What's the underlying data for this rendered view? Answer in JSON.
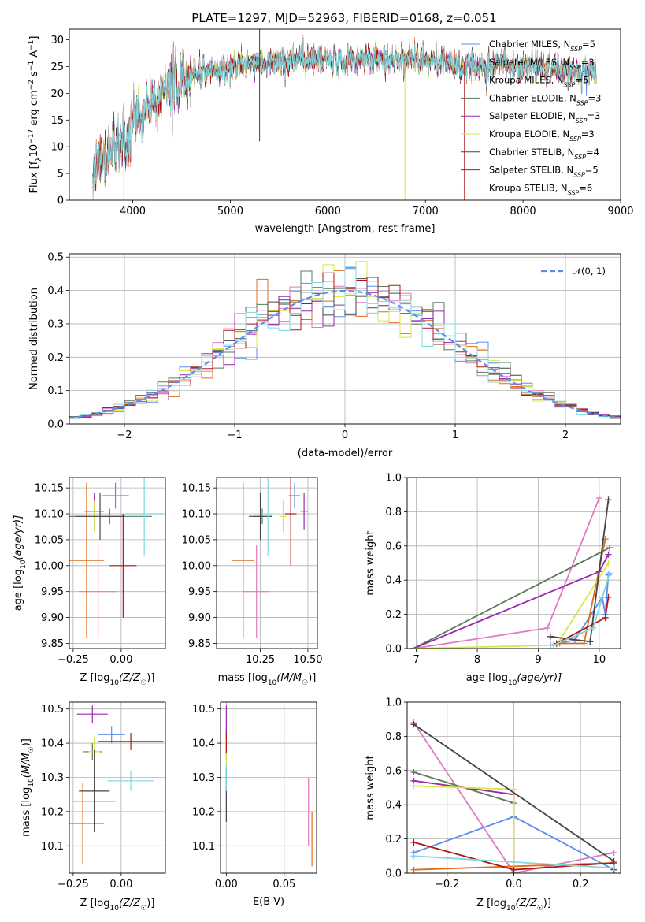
{
  "title": "PLATE=1297, MJD=52963, FIBERID=0168, z=0.051",
  "colors": {
    "Chabrier MILES": "#5b8def",
    "Salpeter MILES": "#e377c2",
    "Kroupa MILES": "#e06c1a",
    "Chabrier ELODIE": "#5a7a5a",
    "Salpeter ELODIE": "#9a27b0",
    "Kroupa ELODIE": "#d4e84a",
    "Chabrier STELIB": "#444444",
    "Salpeter STELIB": "#b01515",
    "Kroupa STELIB": "#7fd8df"
  },
  "chart_data": [
    {
      "type": "line",
      "panel": "spectrum",
      "title": "PLATE=1297, MJD=52963, FIBERID=0168, z=0.051",
      "xlabel": "wavelength [Angstrom, rest frame]",
      "ylabel": "Flux [f_λ 10^-17 erg cm^-2 s^-1 A^-1]",
      "xlim": [
        3350,
        9000
      ],
      "ylim": [
        0,
        32
      ],
      "xticks": [
        4000,
        5000,
        6000,
        7000,
        8000,
        9000
      ],
      "yticks": [
        0,
        5,
        10,
        15,
        20,
        25,
        30
      ],
      "legend_placement": "upper-right",
      "x_knots": [
        3600,
        3650,
        3700,
        3800,
        3900,
        3960,
        4000,
        4100,
        4200,
        4300,
        4400,
        4500,
        4600,
        4700,
        4800,
        4900,
        5000,
        5200,
        5400,
        5600,
        5800,
        6000,
        6200,
        6400,
        6600,
        6800,
        7000,
        7200,
        7400,
        7600,
        7800,
        8000,
        8200,
        8400,
        8600,
        8750
      ],
      "flux_knots": [
        4.5,
        7.5,
        8.0,
        9.5,
        10.5,
        11.5,
        15.5,
        16.5,
        17.5,
        19.5,
        21.5,
        22.5,
        23.0,
        23.5,
        24.0,
        24.5,
        25.0,
        25.5,
        26.0,
        26.2,
        26.5,
        26.0,
        26.0,
        26.5,
        26.0,
        26.5,
        26.5,
        26.0,
        24.5,
        25.0,
        25.5,
        25.0,
        24.5,
        24.5,
        24.0,
        24.0
      ],
      "series": [
        {
          "name": "Chabrier MILES, N_SSP=5",
          "label_main": "Chabrier MILES, N",
          "label_sub": "SSP",
          "label_tail": "=5"
        },
        {
          "name": "Salpeter MILES, N_SSP=3",
          "label_main": "Salpeter MILES, N",
          "label_sub": "SSP",
          "label_tail": "=3"
        },
        {
          "name": "Kroupa MILES, N_SSP=5",
          "label_main": "Kroupa MILES, N",
          "label_sub": "SSP",
          "label_tail": "=5"
        },
        {
          "name": "Chabrier ELODIE, N_SSP=3",
          "label_main": "Chabrier ELODIE, N",
          "label_sub": "SSP",
          "label_tail": "=3"
        },
        {
          "name": "Salpeter ELODIE, N_SSP=3",
          "label_main": "Salpeter ELODIE, N",
          "label_sub": "SSP",
          "label_tail": "=3"
        },
        {
          "name": "Kroupa ELODIE, N_SSP=3",
          "label_main": "Kroupa ELODIE, N",
          "label_sub": "SSP",
          "label_tail": "=3"
        },
        {
          "name": "Chabrier STELIB, N_SSP=4",
          "label_main": "Chabrier STELIB, N",
          "label_sub": "SSP",
          "label_tail": "=4"
        },
        {
          "name": "Salpeter STELIB, N_SSP=5",
          "label_main": "Salpeter STELIB, N",
          "label_sub": "SSP",
          "label_tail": "=5"
        },
        {
          "name": "Kroupa STELIB, N_SSP=6",
          "label_main": "Kroupa STELIB, N",
          "label_sub": "SSP",
          "label_tail": "=6"
        }
      ],
      "spikes": [
        {
          "x": 5300,
          "y_top": 32,
          "y_bottom": 11,
          "series": 6
        },
        {
          "x": 3910,
          "y_top": 8,
          "y_bottom": 0,
          "series": 2
        },
        {
          "x": 6790,
          "y_top": 26,
          "y_bottom": 0,
          "series": 5
        },
        {
          "x": 7400,
          "y_top": 26,
          "y_bottom": 0,
          "series": 7
        },
        {
          "x": 8650,
          "y_top": 24,
          "y_bottom": 19.5,
          "series": 0
        }
      ]
    },
    {
      "type": "line",
      "panel": "residual-histogram",
      "xlabel": "(data-model)/error",
      "ylabel": "Normed distribution",
      "xlim": [
        -2.5,
        2.5
      ],
      "ylim": [
        0,
        0.51
      ],
      "xticks": [
        -2,
        -1,
        0,
        1,
        2
      ],
      "yticks": [
        0.0,
        0.1,
        0.2,
        0.3,
        0.4,
        0.5
      ],
      "grid": true,
      "legend_placement": "upper-right",
      "reference_curve": {
        "name": "N(0, 1)",
        "label": "𝒩(0, 1)",
        "style": "dashed",
        "color": "#5b8def"
      },
      "bin_width": 0.1,
      "bins_from": -2.5
    },
    {
      "type": "scatter",
      "panel": "age-vs-Z",
      "xlabel": "Z [log10(Z/Z☉)]",
      "ylabel": "age [log10(age/yr)]",
      "xlim": [
        -0.27,
        0.23
      ],
      "ylim": [
        9.84,
        10.17
      ],
      "xticks": [
        -0.25,
        0.0
      ],
      "yticks": [
        9.85,
        9.9,
        9.95,
        10.0,
        10.05,
        10.1,
        10.15
      ],
      "grid": true,
      "points": [
        {
          "series": 0,
          "x": -0.03,
          "y": 10.135,
          "xerr": 0.07,
          "yerr": 0.025
        },
        {
          "series": 1,
          "x": -0.12,
          "y": 9.95,
          "xerr": 0.1,
          "yerr": 0.09
        },
        {
          "series": 2,
          "x": -0.18,
          "y": 10.01,
          "xerr": 0.09,
          "yerr": 0.15
        },
        {
          "series": 3,
          "x": -0.06,
          "y": 10.095,
          "xerr": 0.22,
          "yerr": 0.015
        },
        {
          "series": 4,
          "x": -0.14,
          "y": 10.105,
          "xerr": 0.05,
          "yerr": 0.035
        },
        {
          "series": 5,
          "x": -0.14,
          "y": 10.095,
          "xerr": 0.03,
          "yerr": 0.03
        },
        {
          "series": 6,
          "x": -0.11,
          "y": 10.095,
          "xerr": 0.13,
          "yerr": 0.045
        },
        {
          "series": 7,
          "x": 0.01,
          "y": 10.0,
          "xerr": 0.07,
          "yerr": 0.1
        },
        {
          "series": 8,
          "x": 0.12,
          "y": 10.1,
          "xerr": 0.1,
          "yerr": 0.08
        }
      ]
    },
    {
      "type": "scatter",
      "panel": "age-vs-mass",
      "xlabel": "mass [log10(M/M☉)]",
      "ylabel": "",
      "xlim": [
        10.02,
        10.55
      ],
      "ylim": [
        9.84,
        10.17
      ],
      "xticks": [
        10.25,
        10.5
      ],
      "yticks": [
        9.85,
        9.9,
        9.95,
        10.0,
        10.05,
        10.1,
        10.15
      ],
      "grid": true,
      "points": [
        {
          "series": 0,
          "x": 10.43,
          "y": 10.135,
          "xerr": 0.03,
          "yerr": 0.025
        },
        {
          "series": 1,
          "x": 10.23,
          "y": 9.95,
          "xerr": 0.07,
          "yerr": 0.09
        },
        {
          "series": 2,
          "x": 10.16,
          "y": 10.01,
          "xerr": 0.06,
          "yerr": 0.15
        },
        {
          "series": 3,
          "x": 10.26,
          "y": 10.095,
          "xerr": 0.05,
          "yerr": 0.015
        },
        {
          "series": 4,
          "x": 10.48,
          "y": 10.105,
          "xerr": 0.02,
          "yerr": 0.035
        },
        {
          "series": 5,
          "x": 10.37,
          "y": 10.095,
          "xerr": 0.02,
          "yerr": 0.03
        },
        {
          "series": 6,
          "x": 10.25,
          "y": 10.095,
          "xerr": 0.06,
          "yerr": 0.045
        },
        {
          "series": 7,
          "x": 10.41,
          "y": 10.1,
          "xerr": 0.03,
          "yerr": 0.1
        },
        {
          "series": 8,
          "x": 10.29,
          "y": 10.1,
          "xerr": 0.03,
          "yerr": 0.08
        }
      ]
    },
    {
      "type": "line",
      "panel": "mass-weight-vs-age",
      "xlabel": "age [log10(age/yr)]",
      "ylabel": "mass weight",
      "xlim": [
        6.85,
        10.35
      ],
      "ylim": [
        0,
        1.0
      ],
      "xticks": [
        7,
        8,
        9,
        10
      ],
      "yticks": [
        0.0,
        0.2,
        0.4,
        0.6,
        0.8,
        1.0
      ],
      "grid": true,
      "series": [
        {
          "series": 0,
          "x": [
            9.2,
            9.6,
            10.05,
            10.1,
            10.15
          ],
          "y": [
            0.02,
            0.05,
            0.3,
            0.2,
            0.43
          ]
        },
        {
          "series": 1,
          "x": [
            6.95,
            9.15,
            10.0
          ],
          "y": [
            0.0,
            0.12,
            0.88
          ]
        },
        {
          "series": 2,
          "x": [
            9.35,
            9.75,
            10.1
          ],
          "y": [
            0.03,
            0.03,
            0.64
          ]
        },
        {
          "series": 3,
          "x": [
            6.95,
            10.17
          ],
          "y": [
            0.0,
            0.59
          ]
        },
        {
          "series": 4,
          "x": [
            6.95,
            10.0,
            10.15
          ],
          "y": [
            0.0,
            0.45,
            0.55
          ]
        },
        {
          "series": 5,
          "x": [
            6.95,
            9.3,
            10.15
          ],
          "y": [
            0.0,
            0.02,
            0.5
          ]
        },
        {
          "series": 6,
          "x": [
            9.2,
            9.85,
            10.15
          ],
          "y": [
            0.07,
            0.04,
            0.87
          ]
        },
        {
          "series": 7,
          "x": [
            9.3,
            10.1,
            10.15
          ],
          "y": [
            0.03,
            0.18,
            0.3
          ]
        },
        {
          "series": 8,
          "x": [
            9.25,
            9.9,
            10.17
          ],
          "y": [
            0.02,
            0.12,
            0.44
          ]
        }
      ]
    },
    {
      "type": "scatter",
      "panel": "mass-vs-Z",
      "xlabel": "Z [log10(Z/Z☉)]",
      "ylabel": "mass [log10(M/M☉)]",
      "xlim": [
        -0.27,
        0.23
      ],
      "ylim": [
        10.02,
        10.52
      ],
      "xticks": [
        -0.25,
        0.0
      ],
      "yticks": [
        10.1,
        10.2,
        10.3,
        10.4,
        10.5
      ],
      "grid": true,
      "points": [
        {
          "series": 0,
          "x": -0.05,
          "y": 10.425,
          "xerr": 0.07,
          "yerr": 0.025
        },
        {
          "series": 1,
          "x": -0.14,
          "y": 10.23,
          "xerr": 0.11,
          "yerr": 0.07
        },
        {
          "series": 2,
          "x": -0.2,
          "y": 10.165,
          "xerr": 0.11,
          "yerr": 0.12
        },
        {
          "series": 3,
          "x": -0.15,
          "y": 10.375,
          "xerr": 0.05,
          "yerr": 0.025
        },
        {
          "series": 4,
          "x": -0.15,
          "y": 10.485,
          "xerr": 0.08,
          "yerr": 0.025
        },
        {
          "series": 5,
          "x": -0.14,
          "y": 10.375,
          "xerr": 0.03,
          "yerr": 0.045
        },
        {
          "series": 6,
          "x": -0.14,
          "y": 10.26,
          "xerr": 0.08,
          "yerr": 0.12
        },
        {
          "series": 7,
          "x": 0.05,
          "y": 10.405,
          "xerr": 0.17,
          "yerr": 0.025
        },
        {
          "series": 8,
          "x": 0.05,
          "y": 10.29,
          "xerr": 0.12,
          "yerr": 0.03
        }
      ]
    },
    {
      "type": "scatter",
      "panel": "mass-vs-EBV",
      "xlabel": "E(B-V)",
      "ylabel": "",
      "xlim": [
        -0.005,
        0.078
      ],
      "ylim": [
        10.02,
        10.52
      ],
      "xticks": [
        0.0,
        0.05
      ],
      "yticks": [
        10.1,
        10.2,
        10.3,
        10.4,
        10.5
      ],
      "grid": true,
      "points": [
        {
          "series": 0,
          "x": 0.0,
          "y": 10.43,
          "xerr": 0,
          "yerr": 0.02
        },
        {
          "series": 1,
          "x": 0.071,
          "y": 10.2,
          "xerr": 0,
          "yerr": 0.1
        },
        {
          "series": 2,
          "x": 0.074,
          "y": 10.12,
          "xerr": 0,
          "yerr": 0.08
        },
        {
          "series": 3,
          "x": 0.0,
          "y": 10.37,
          "xerr": 0,
          "yerr": 0.02
        },
        {
          "series": 4,
          "x": 0.0,
          "y": 10.47,
          "xerr": 0,
          "yerr": 0.04
        },
        {
          "series": 5,
          "x": 0.0,
          "y": 10.37,
          "xerr": 0,
          "yerr": 0.03
        },
        {
          "series": 6,
          "x": 0.0,
          "y": 10.25,
          "xerr": 0,
          "yerr": 0.08
        },
        {
          "series": 7,
          "x": 0.0,
          "y": 10.4,
          "xerr": 0,
          "yerr": 0.03
        },
        {
          "series": 8,
          "x": 0.0,
          "y": 10.3,
          "xerr": 0,
          "yerr": 0.04
        }
      ]
    },
    {
      "type": "line",
      "panel": "mass-weight-vs-Z",
      "xlabel": "Z [log10(Z/Z☉)]",
      "ylabel": "mass weight",
      "xlim": [
        -0.32,
        0.32
      ],
      "ylim": [
        0,
        1.0
      ],
      "xticks": [
        -0.2,
        0.0,
        0.2
      ],
      "yticks": [
        0.0,
        0.2,
        0.4,
        0.6,
        0.8,
        1.0
      ],
      "grid": true,
      "series": [
        {
          "series": 0,
          "x": [
            -0.3,
            0.0,
            0.3
          ],
          "y": [
            0.12,
            0.33,
            0.02
          ]
        },
        {
          "series": 1,
          "x": [
            -0.3,
            0.0,
            0.3
          ],
          "y": [
            0.88,
            0.0,
            0.12
          ]
        },
        {
          "series": 2,
          "x": [
            -0.3,
            0.3
          ],
          "y": [
            0.02,
            0.06
          ]
        },
        {
          "series": 3,
          "x": [
            -0.3,
            0.0
          ],
          "y": [
            0.59,
            0.41
          ]
        },
        {
          "series": 4,
          "x": [
            -0.3,
            0.0,
            0.0
          ],
          "y": [
            0.54,
            0.46,
            0.0
          ]
        },
        {
          "series": 5,
          "x": [
            -0.3,
            0.0,
            0.0
          ],
          "y": [
            0.51,
            0.49,
            0.0
          ]
        },
        {
          "series": 6,
          "x": [
            -0.3,
            0.3,
            0.3
          ],
          "y": [
            0.87,
            0.07,
            0.02
          ]
        },
        {
          "series": 7,
          "x": [
            -0.3,
            0.0,
            0.3
          ],
          "y": [
            0.18,
            0.02,
            0.06
          ]
        },
        {
          "series": 8,
          "x": [
            -0.3,
            0.3
          ],
          "y": [
            0.1,
            0.03
          ]
        }
      ]
    }
  ],
  "labels": {
    "spec_xlabel": "wavelength [Angstrom, rest frame]",
    "hist_xlabel": "(data-model)/error",
    "hist_ylabel": "Normed distribution",
    "hist_legend": "𝒩(0, 1)",
    "mass_weight": "mass weight",
    "age_main": "age",
    "age_log": "[log",
    "age_arg": "(age/yr)]",
    "z_main": "Z [log",
    "z_arg": "(Z/Z",
    "mass_main": "mass [log",
    "mass_arg": "(M/M",
    "ebv": "E(B-V)",
    "ten": "10",
    "sun": "☉",
    "close": ")]",
    "flux_main": "Flux [f",
    "flux_lambda": "λ",
    "flux_ten": "10",
    "flux_exp17": "−17",
    "flux_unit": " erg cm",
    "flux_exp2": "−2",
    "flux_s": " s",
    "flux_exp1": "−1",
    "flux_A": " A",
    "flux_close": "]"
  }
}
